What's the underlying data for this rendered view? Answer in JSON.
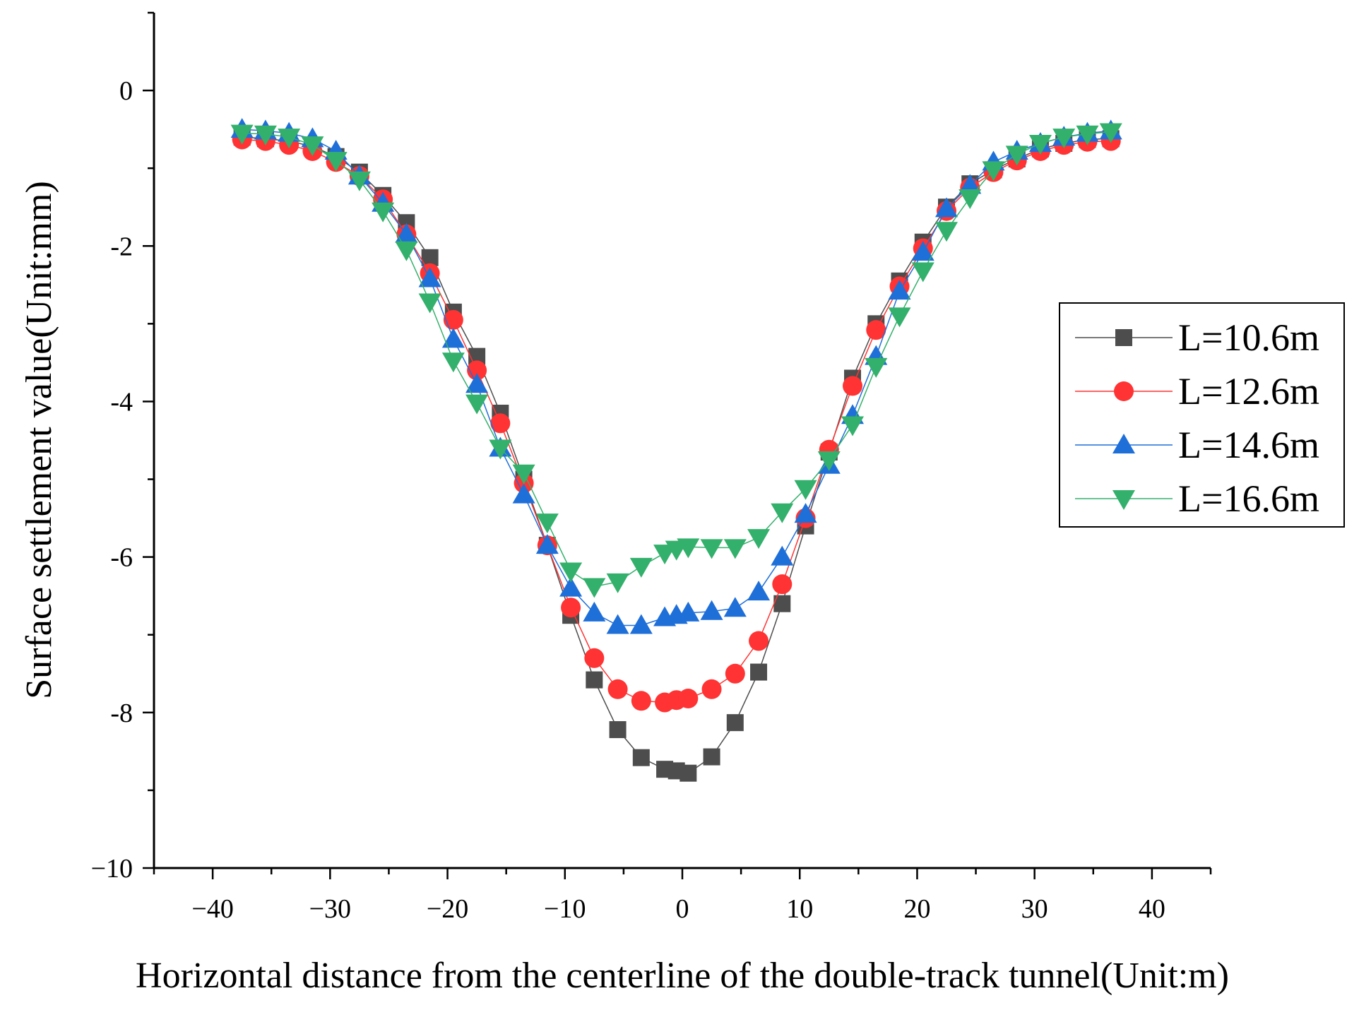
{
  "chart_data": {
    "type": "line",
    "title": "",
    "xlabel": "Horizontal distance from the centerline of the double-track tunnel(Unit:m)",
    "ylabel": "Surface settlement value(Unit:mm)",
    "xlim": [
      -45,
      45
    ],
    "ylim": [
      -10,
      1
    ],
    "xticks": [
      -40,
      -30,
      -20,
      -10,
      0,
      10,
      20,
      30,
      40
    ],
    "xtick_labels": [
      "−40",
      "−30",
      "−20",
      "−10",
      "0",
      "10",
      "20",
      "30",
      "40"
    ],
    "yticks": [
      0,
      -2,
      -4,
      -6,
      -8,
      -10
    ],
    "ytick_labels": [
      "0",
      "-2",
      "-4",
      "-6",
      "-8",
      "−10"
    ],
    "grid": false,
    "legend_position": "right",
    "x": [
      -37.5,
      -35.5,
      -33.5,
      -31.5,
      -29.5,
      -27.5,
      -25.5,
      -23.5,
      -21.5,
      -19.5,
      -17.5,
      -15.5,
      -13.5,
      -11.5,
      -9.5,
      -7.5,
      -5.5,
      -3.5,
      -1.5,
      -0.5,
      0.5,
      2.5,
      4.5,
      6.5,
      8.5,
      10.5,
      12.5,
      14.5,
      16.5,
      18.5,
      20.5,
      22.5,
      24.5,
      26.5,
      28.5,
      30.5,
      32.5,
      34.5,
      36.5
    ],
    "series": [
      {
        "name": "L=10.6m",
        "color": "#4d4d4d",
        "marker": "square",
        "values": [
          -0.6,
          -0.62,
          -0.65,
          -0.72,
          -0.85,
          -1.05,
          -1.35,
          -1.7,
          -2.15,
          -2.85,
          -3.42,
          -4.15,
          -5.0,
          -5.85,
          -6.75,
          -7.58,
          -8.22,
          -8.58,
          -8.73,
          -8.75,
          -8.78,
          -8.57,
          -8.13,
          -7.48,
          -6.6,
          -5.6,
          -4.65,
          -3.7,
          -3.0,
          -2.45,
          -1.95,
          -1.5,
          -1.2,
          -1.02,
          -0.88,
          -0.75,
          -0.68,
          -0.63,
          -0.62
        ]
      },
      {
        "name": "L=12.6m",
        "color": "#ff3333",
        "marker": "circle",
        "values": [
          -0.63,
          -0.65,
          -0.7,
          -0.78,
          -0.92,
          -1.1,
          -1.4,
          -1.85,
          -2.35,
          -2.95,
          -3.6,
          -4.28,
          -5.05,
          -5.85,
          -6.65,
          -7.3,
          -7.7,
          -7.85,
          -7.87,
          -7.84,
          -7.82,
          -7.7,
          -7.5,
          -7.08,
          -6.35,
          -5.5,
          -4.62,
          -3.8,
          -3.08,
          -2.52,
          -2.03,
          -1.55,
          -1.25,
          -1.05,
          -0.9,
          -0.78,
          -0.7,
          -0.66,
          -0.65
        ]
      },
      {
        "name": "L=14.6m",
        "color": "#1f6fd9",
        "marker": "triangle-up",
        "values": [
          -0.5,
          -0.52,
          -0.55,
          -0.62,
          -0.78,
          -1.1,
          -1.45,
          -1.85,
          -2.42,
          -3.2,
          -3.78,
          -4.6,
          -5.2,
          -5.85,
          -6.4,
          -6.72,
          -6.88,
          -6.88,
          -6.78,
          -6.75,
          -6.72,
          -6.7,
          -6.66,
          -6.45,
          -6.0,
          -5.45,
          -4.82,
          -4.18,
          -3.42,
          -2.58,
          -2.08,
          -1.52,
          -1.22,
          -0.92,
          -0.78,
          -0.68,
          -0.6,
          -0.55,
          -0.52
        ]
      },
      {
        "name": "L=16.6m",
        "color": "#33b06b",
        "marker": "triangle-down",
        "values": [
          -0.55,
          -0.56,
          -0.6,
          -0.7,
          -0.9,
          -1.15,
          -1.55,
          -2.05,
          -2.72,
          -3.48,
          -4.02,
          -4.6,
          -4.92,
          -5.55,
          -6.18,
          -6.38,
          -6.32,
          -6.12,
          -5.95,
          -5.9,
          -5.87,
          -5.88,
          -5.88,
          -5.75,
          -5.42,
          -5.12,
          -4.75,
          -4.3,
          -3.55,
          -2.9,
          -2.32,
          -1.8,
          -1.38,
          -1.02,
          -0.82,
          -0.68,
          -0.6,
          -0.56,
          -0.53
        ]
      }
    ]
  }
}
